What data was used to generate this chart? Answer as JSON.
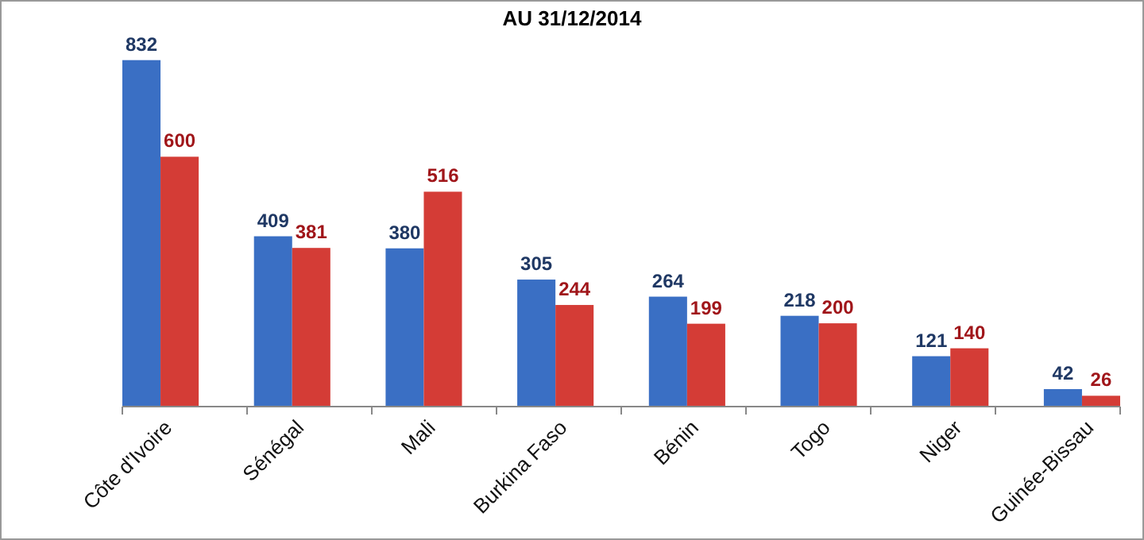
{
  "chart_data": {
    "type": "bar",
    "title": "AU 31/12/2014",
    "categories": [
      "Côte d'Ivoire",
      "Sénégal",
      "Mali",
      "Burkina Faso",
      "Bénin",
      "Togo",
      "Niger",
      "Guinée-Bissau"
    ],
    "series": [
      {
        "color": "#3a6fc4",
        "values": [
          832,
          409,
          380,
          305,
          264,
          218,
          121,
          42
        ]
      },
      {
        "color": "#d43c36",
        "values": [
          600,
          381,
          516,
          244,
          199,
          200,
          140,
          26
        ]
      }
    ],
    "data_labels": true
  }
}
